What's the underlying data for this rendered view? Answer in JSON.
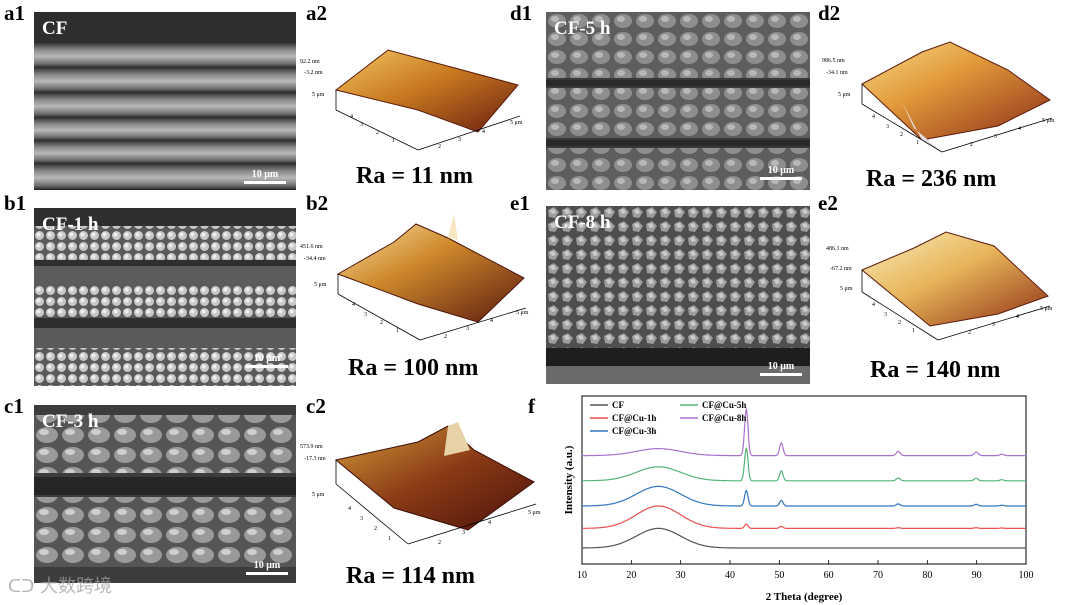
{
  "panels": {
    "a1": {
      "label": "a1",
      "title": "CF",
      "scale": "10 μm"
    },
    "a2": {
      "label": "a2",
      "zmax": "92.2 nm",
      "zmin": "-3.2 nm",
      "size": "5 μm",
      "ra": "Ra = 11 nm"
    },
    "b1": {
      "label": "b1",
      "title": "CF-1 h",
      "scale": "10 μm"
    },
    "b2": {
      "label": "b2",
      "zmax": "451.6 nm",
      "zmin": "-34.4 nm",
      "size": "5 μm",
      "ra": "Ra = 100 nm"
    },
    "c1": {
      "label": "c1",
      "title": "CF-3 h",
      "scale": "10 μm"
    },
    "c2": {
      "label": "c2",
      "zmax": "573.9 nm",
      "zmin": "-17.3 nm",
      "size": "5 μm",
      "ra": "Ra = 114 nm"
    },
    "d1": {
      "label": "d1",
      "title": "CF-5 h",
      "scale": "10 μm"
    },
    "d2": {
      "label": "d2",
      "zmax": "986.5 nm",
      "zmin": "-34.1 nm",
      "size": "5 μm",
      "ra": "Ra = 236 nm"
    },
    "e1": {
      "label": "e1",
      "title": "CF-8 h",
      "scale": "10 μm"
    },
    "e2": {
      "label": "e2",
      "zmax": "486.1 nm",
      "zmin": "-67.2 nm",
      "size": "5 μm",
      "ra": "Ra = 140 nm"
    },
    "f": {
      "label": "f"
    }
  },
  "afm_ticks": [
    "1",
    "2",
    "3",
    "4",
    "5"
  ],
  "chart_data": {
    "type": "line",
    "xlabel": "2 Theta (degree)",
    "ylabel": "Intensity (a.u.)",
    "xlim": [
      10,
      100
    ],
    "x_ticks": [
      10,
      20,
      30,
      40,
      50,
      60,
      70,
      80,
      90,
      100
    ],
    "legend_position": "top-left",
    "peaks_2theta": [
      25.5,
      43.3,
      50.4,
      74.1,
      89.9,
      95.1
    ],
    "series": [
      {
        "name": "CF",
        "color": "#555555",
        "offset": 0.0,
        "heights": [
          0.14,
          0.0,
          0.0,
          0.0,
          0.0,
          0.0
        ]
      },
      {
        "name": "CF@Cu-1h",
        "color": "#e8514f",
        "offset": 0.14,
        "heights": [
          0.16,
          0.03,
          0.015,
          0.005,
          0.005,
          0.003
        ]
      },
      {
        "name": "CF@Cu-3h",
        "color": "#3377c0",
        "offset": 0.3,
        "heights": [
          0.14,
          0.11,
          0.04,
          0.015,
          0.012,
          0.006
        ]
      },
      {
        "name": "CF@Cu-5h",
        "color": "#55b377",
        "offset": 0.48,
        "heights": [
          0.1,
          0.23,
          0.07,
          0.02,
          0.018,
          0.008
        ]
      },
      {
        "name": "CF@Cu-8h",
        "color": "#a872cf",
        "offset": 0.66,
        "heights": [
          0.05,
          0.33,
          0.09,
          0.03,
          0.025,
          0.01
        ]
      }
    ]
  },
  "watermark": "大数跨境"
}
